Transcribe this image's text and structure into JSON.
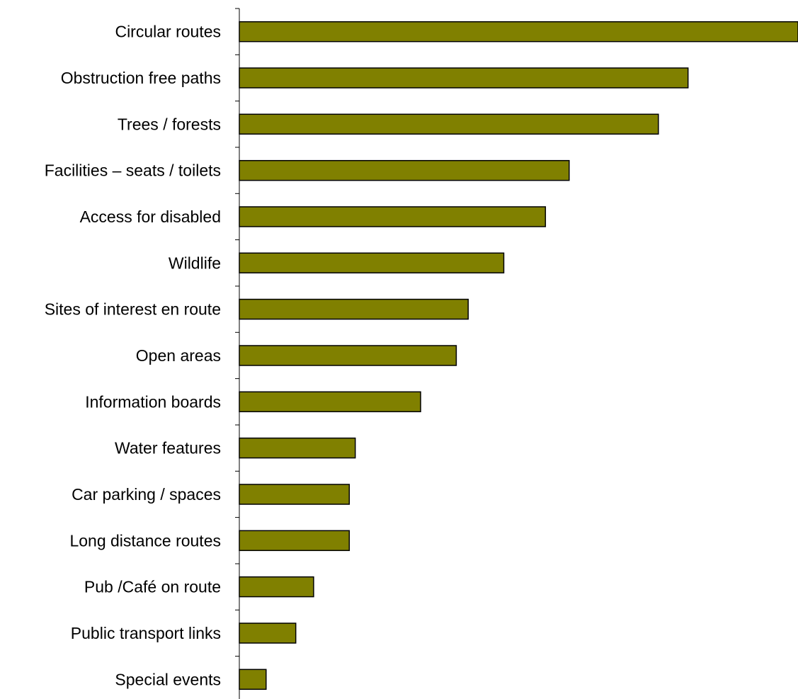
{
  "chart_data": {
    "type": "bar",
    "orientation": "horizontal",
    "title": "",
    "xlabel": "",
    "ylabel": "",
    "categories": [
      "Circular routes",
      "Obstruction free paths",
      "Trees / forests",
      "Facilities – seats / toilets",
      "Access for disabled",
      "Wildlife",
      "Sites of interest en route",
      "Open areas",
      "Information boards",
      "Water features",
      "Car parking / spaces",
      "Long distance routes",
      "Pub /Café on route",
      "Public transport links",
      "Special events"
    ],
    "values": [
      94,
      75.5,
      70.5,
      55.5,
      51.5,
      44.5,
      38.5,
      36.5,
      30.5,
      19.5,
      18.5,
      18.5,
      12.5,
      9.5,
      4.5
    ],
    "xlim": [
      0,
      94
    ],
    "bar_color": "#808000",
    "grid": false,
    "legend": "none"
  }
}
